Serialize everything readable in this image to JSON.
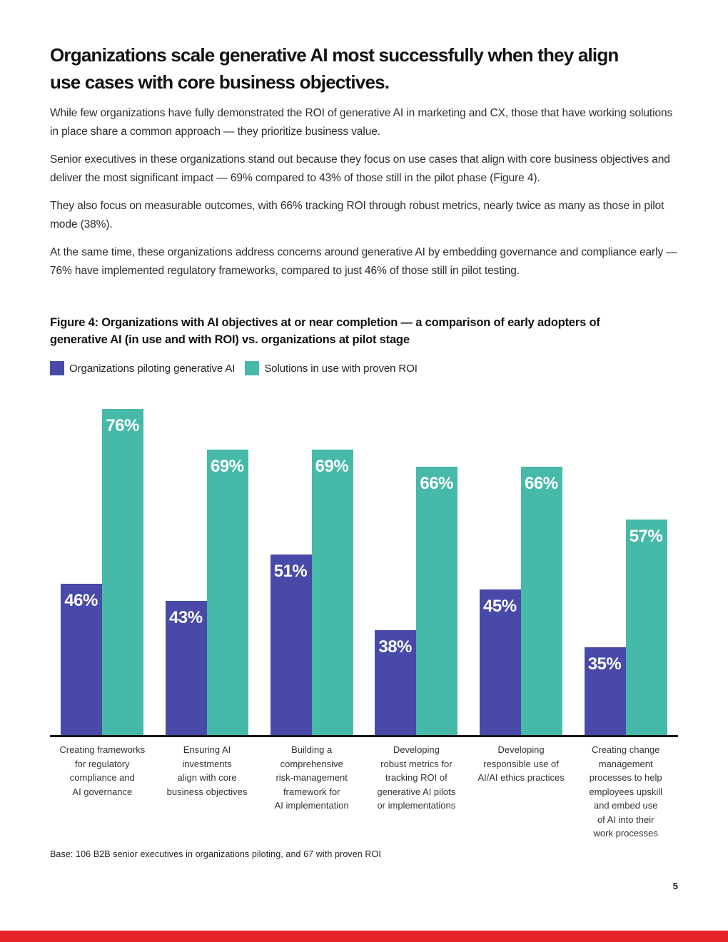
{
  "page": {
    "title_lines": [
      "Organizations scale generative AI most successfully when they align",
      "use cases with core business objectives."
    ],
    "paragraphs": [
      "While few organizations have fully demonstrated the ROI of generative AI in marketing and CX, those that have working solutions in place share a common approach — they prioritize business value.",
      "Senior executives in these organizations stand out because they focus on use cases that align with core business objectives and deliver the most significant impact — 69% compared to 43% of those still in the pilot phase (Figure 4).",
      "They also focus on measurable outcomes, with 66% tracking ROI through robust metrics, nearly twice as many as those in pilot mode (38%).",
      "At the same time, these organizations address concerns around generative AI by embedding governance and compliance early — 76% have implemented regulatory frameworks, compared to just 46% of those still in pilot testing."
    ],
    "figure_caption_lines": [
      "Figure 4: Organizations with AI objectives at or near completion — a comparison of early adopters of",
      "generative AI (in use and with ROI) vs. organizations at pilot stage"
    ],
    "base_note": "Base: 106 B2B senior executives in organizations piloting, and 67 with proven ROI",
    "page_number": "5"
  },
  "colors": {
    "pilot_purple": "#4849a8",
    "roi_teal": "#46b9a8",
    "footer_red": "#e8232a",
    "axis_black": "#161616"
  },
  "chart_data": {
    "type": "bar",
    "title": "Figure 4: Organizations with AI objectives at or near completion — a comparison of early adopters of generative AI (in use and with ROI) vs. organizations at pilot stage",
    "categories": [
      "Creating frameworks for regulatory compliance and AI governance",
      "Ensuring AI investments align with core business objectives",
      "Building a comprehensive risk-management framework for AI implementation",
      "Developing robust metrics for tracking ROI of generative AI pilots or implementations",
      "Developing responsible use of AI/AI ethics practices",
      "Creating change management processes to help employees upskill and embed use of AI into their work processes"
    ],
    "category_label_lines": [
      [
        "Creating frameworks",
        "for regulatory",
        "compliance and",
        "AI governance"
      ],
      [
        "Ensuring AI",
        "investments",
        "align with core",
        "business objectives"
      ],
      [
        "Building a",
        "comprehensive",
        "risk-management",
        "framework for",
        "AI implementation"
      ],
      [
        "Developing",
        "robust metrics for",
        "tracking ROI of",
        "generative AI pilots",
        "or implementations"
      ],
      [
        "Developing",
        "responsible use of",
        "AI/AI ethics practices"
      ],
      [
        "Creating change",
        "management",
        "processes to help",
        "employees upskill",
        "and embed use",
        "of AI into their",
        "work processes"
      ]
    ],
    "series": [
      {
        "name": "Organizations piloting generative AI",
        "color": "#4849a8",
        "values": [
          46,
          43,
          51,
          38,
          45,
          35
        ]
      },
      {
        "name": "Solutions in use with proven ROI",
        "color": "#46b9a8",
        "values": [
          76,
          69,
          69,
          66,
          66,
          57
        ]
      }
    ],
    "value_suffix": "%",
    "data_labels": "inside-top",
    "grid": false,
    "legend_position": "top-left",
    "xlabel": "",
    "ylabel": "",
    "ylim": [
      20,
      80
    ]
  }
}
